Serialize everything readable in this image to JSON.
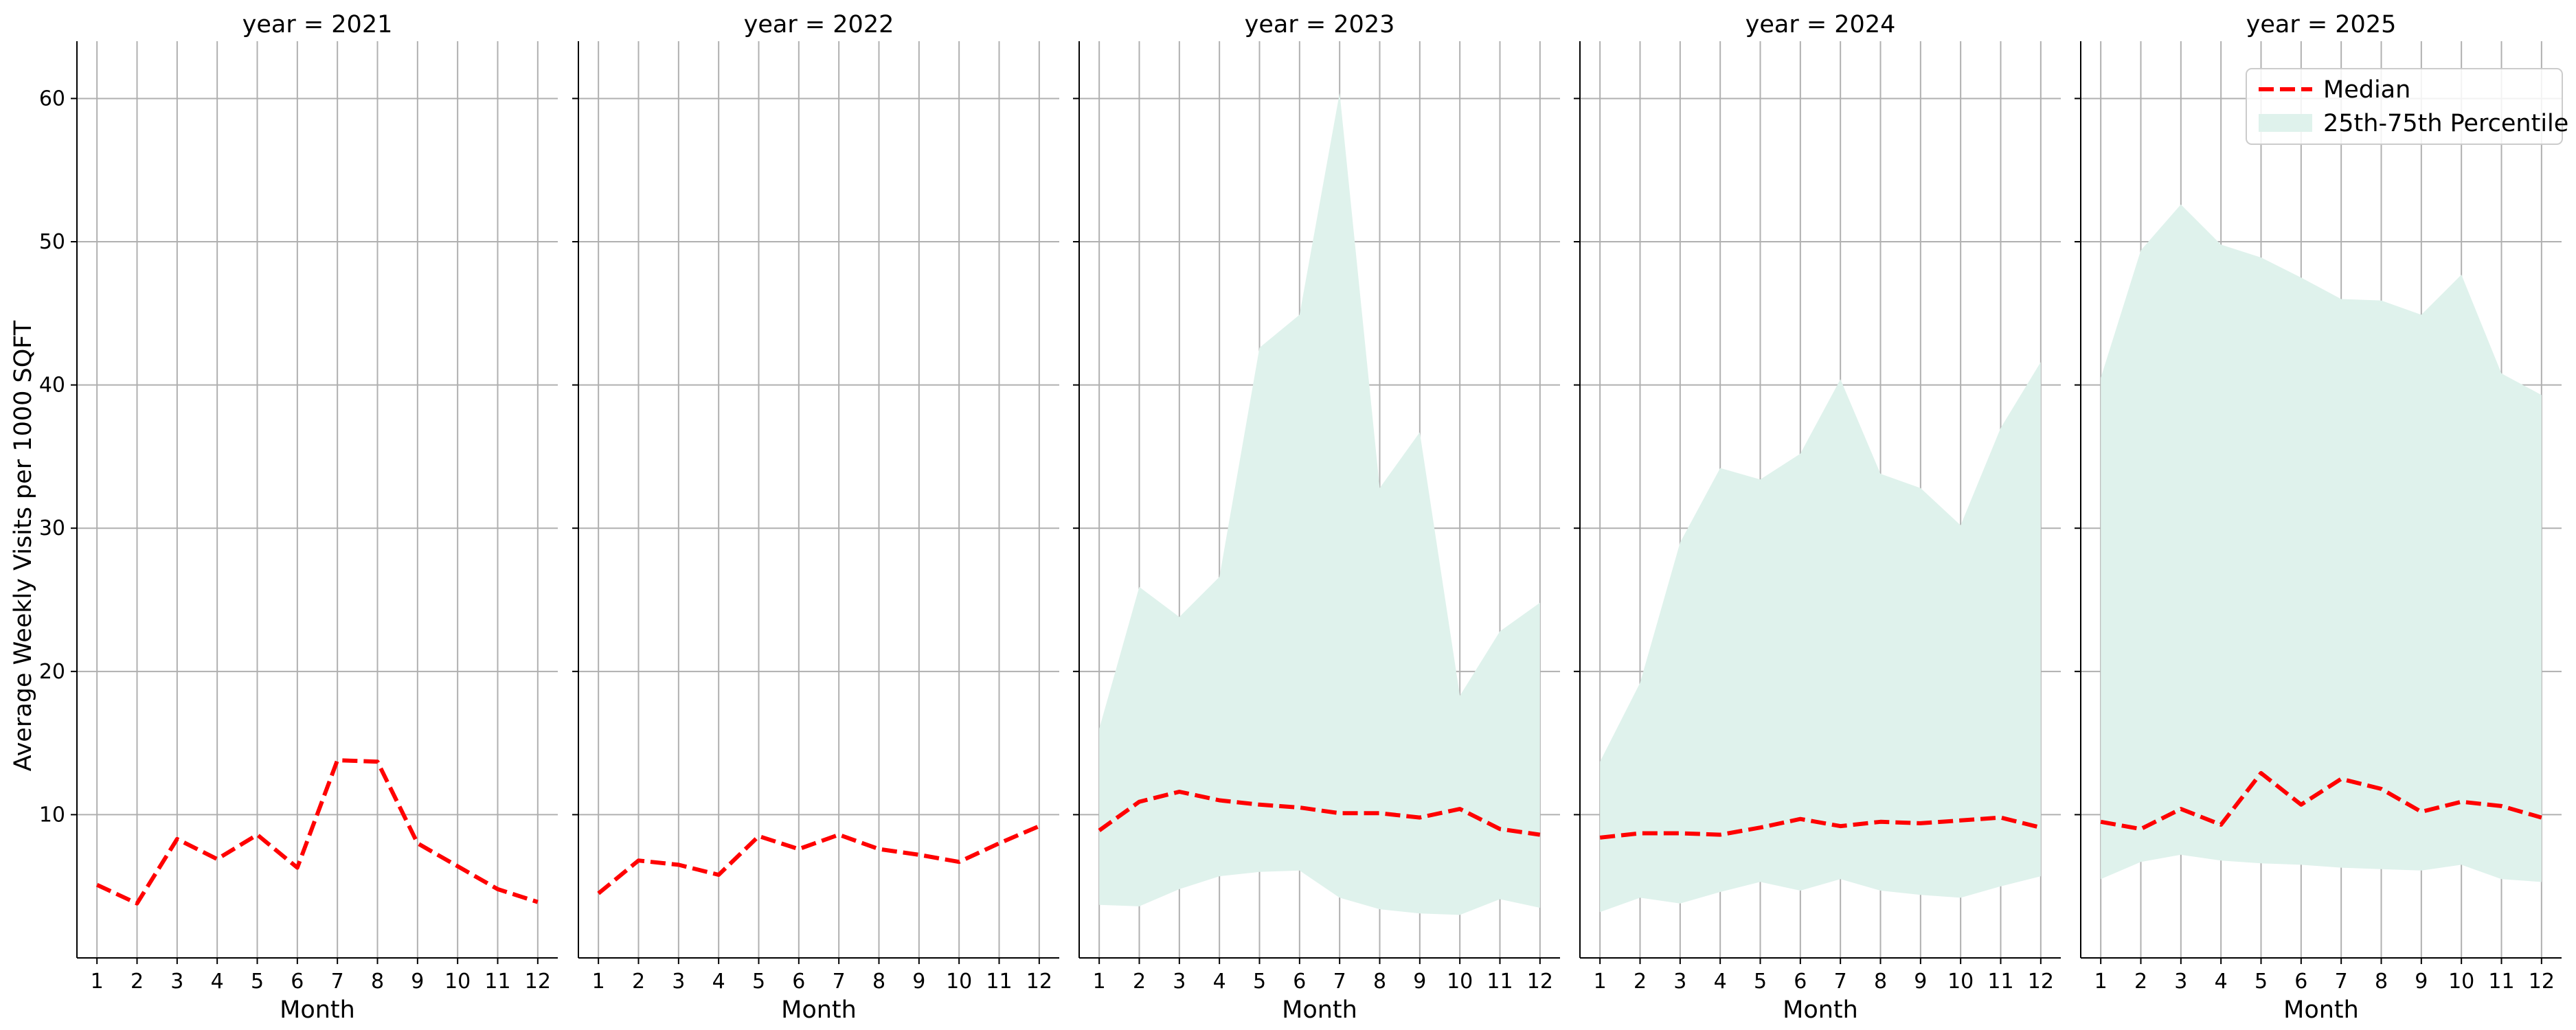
{
  "chart_data": {
    "type": "line",
    "ylabel": "Average Weekly Visits per 1000 SQFT",
    "xlabel": "Month",
    "ylim": [
      0,
      64
    ],
    "xlim": [
      0.5,
      12.5
    ],
    "x": [
      1,
      2,
      3,
      4,
      5,
      6,
      7,
      8,
      9,
      10,
      11,
      12
    ],
    "y_ticks": [
      10,
      20,
      30,
      40,
      50,
      60
    ],
    "grid": true,
    "legend": {
      "placement": "top-right",
      "median_label": "Median",
      "band_label": "25th-75th Percentile"
    },
    "colors": {
      "median": "#ff0000",
      "band": "#dff2ec",
      "grid": "#b0b0b0",
      "axis": "#000000"
    },
    "panels": [
      {
        "title": "year = 2021",
        "median": [
          5.1,
          3.8,
          8.3,
          6.9,
          8.6,
          6.3,
          13.8,
          13.7,
          8.0,
          6.4,
          4.8,
          3.9
        ],
        "p25": null,
        "p75": null
      },
      {
        "title": "year = 2022",
        "median": [
          4.5,
          6.8,
          6.5,
          5.8,
          8.5,
          7.6,
          8.6,
          7.6,
          7.2,
          6.7,
          8.0,
          9.2
        ],
        "p25": null,
        "p75": null
      },
      {
        "title": "year = 2023",
        "median": [
          8.9,
          10.9,
          11.6,
          11.0,
          10.7,
          10.5,
          10.1,
          10.1,
          9.8,
          10.4,
          9.0,
          8.6
        ],
        "p25": [
          3.7,
          3.6,
          4.8,
          5.7,
          6.0,
          6.1,
          4.2,
          3.4,
          3.1,
          3.0,
          4.1,
          3.5
        ],
        "p75": [
          16.0,
          25.9,
          23.8,
          26.6,
          42.6,
          44.9,
          60.4,
          32.8,
          36.7,
          18.3,
          22.8,
          24.8
        ]
      },
      {
        "title": "year = 2024",
        "median": [
          8.4,
          8.7,
          8.7,
          8.6,
          9.1,
          9.7,
          9.2,
          9.5,
          9.4,
          9.6,
          9.8,
          9.1
        ],
        "p25": [
          3.2,
          4.2,
          3.8,
          4.6,
          5.3,
          4.7,
          5.5,
          4.7,
          4.4,
          4.2,
          5.0,
          5.7
        ],
        "p75": [
          13.7,
          19.2,
          29.0,
          34.2,
          33.4,
          35.2,
          40.4,
          33.8,
          32.8,
          30.2,
          37.0,
          41.6
        ]
      },
      {
        "title": "year = 2025",
        "median": [
          9.5,
          9.0,
          10.4,
          9.3,
          12.9,
          10.7,
          12.5,
          11.8,
          10.2,
          10.9,
          10.6,
          9.8
        ],
        "p25": [
          5.5,
          6.7,
          7.2,
          6.8,
          6.6,
          6.5,
          6.3,
          6.2,
          6.1,
          6.5,
          5.5,
          5.3
        ],
        "p75": [
          40.5,
          49.4,
          52.6,
          49.8,
          48.9,
          47.5,
          46.0,
          45.9,
          44.9,
          47.7,
          40.8,
          39.3
        ]
      }
    ]
  }
}
